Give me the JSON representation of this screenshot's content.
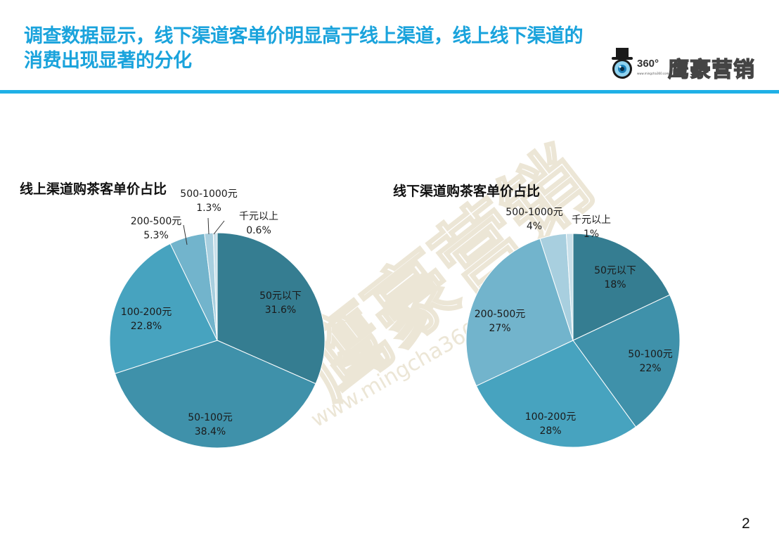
{
  "header": {
    "title": "调查数据显示，线下渠道客单价明显高于线上渠道，线上线下渠道的消费出现显著的分化",
    "accent_color": "#1aa3dc",
    "rule_color": "#1fb0e6"
  },
  "logo": {
    "mark": "360°",
    "url": "www.mingcha360.com",
    "brand": "鹰豪营销"
  },
  "watermark": {
    "brand": "鹰豪营销",
    "url": "www.mingcha360"
  },
  "chart_data": [
    {
      "type": "pie",
      "title": "线上渠道购茶客单价占比",
      "categories": [
        "50元以下",
        "50-100元",
        "100-200元",
        "200-500元",
        "500-1000元",
        "千元以上"
      ],
      "values": [
        31.6,
        38.4,
        22.8,
        5.3,
        1.3,
        0.6
      ],
      "labels": [
        "31.6%",
        "38.4%",
        "22.8%",
        "5.3%",
        "1.3%",
        "0.6%"
      ],
      "colors": [
        "#357d91",
        "#3f91aa",
        "#47a3bf",
        "#72b4cc",
        "#a8cfdf",
        "#c9e0ea"
      ],
      "start_angle": "12 o'clock, clockwise"
    },
    {
      "type": "pie",
      "title": "线下渠道购茶客单价占比",
      "categories": [
        "50元以下",
        "50-100元",
        "100-200元",
        "200-500元",
        "500-1000元",
        "千元以上"
      ],
      "values": [
        18,
        22,
        28,
        27,
        4,
        1
      ],
      "labels": [
        "18%",
        "22%",
        "28%",
        "27%",
        "4%",
        "1%"
      ],
      "colors": [
        "#357d91",
        "#3f91aa",
        "#47a3bf",
        "#72b4cc",
        "#a8cfdf",
        "#c9e0ea"
      ],
      "start_angle": "12 o'clock, clockwise"
    }
  ],
  "footer": {
    "page_number": "2"
  }
}
